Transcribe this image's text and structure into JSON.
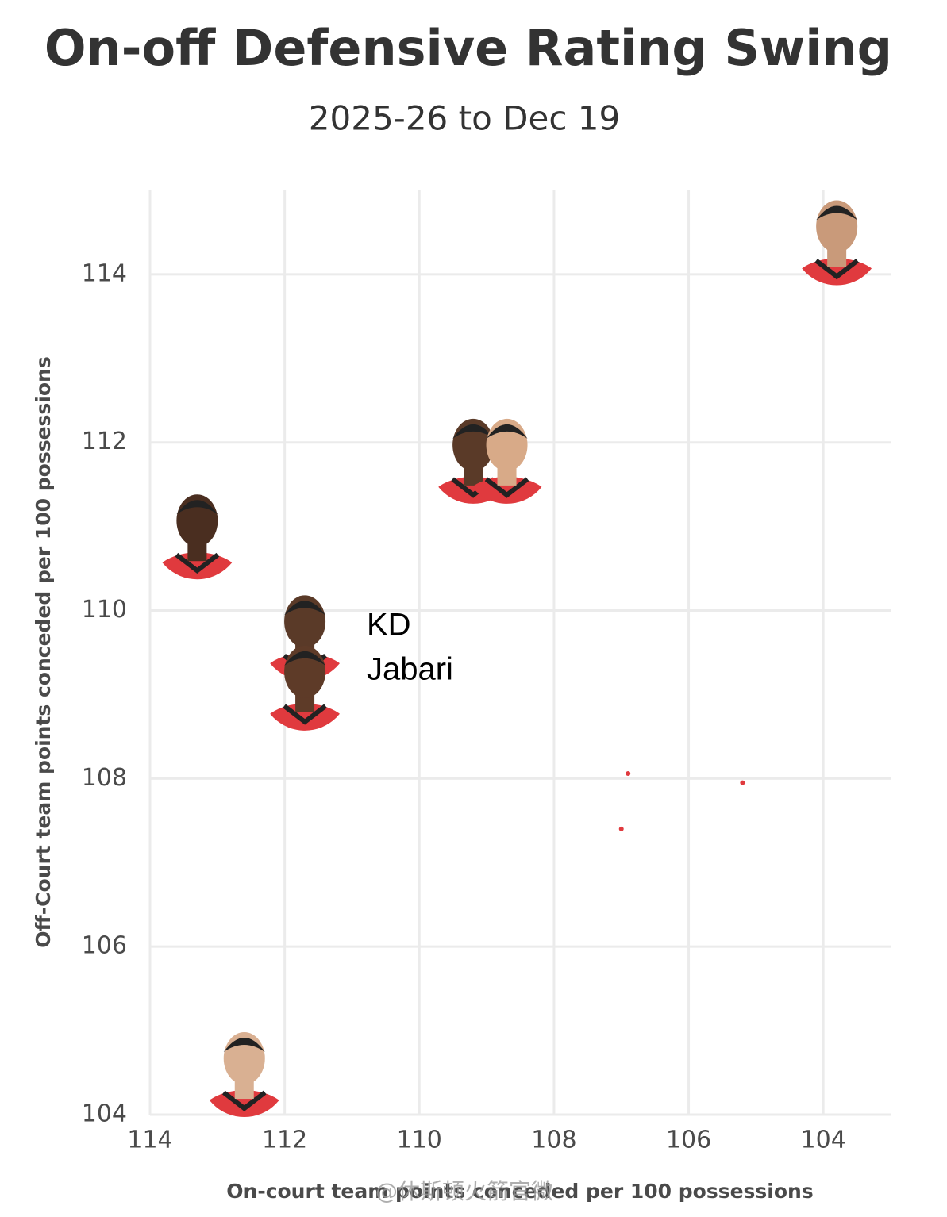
{
  "chart_data": {
    "type": "scatter",
    "title": "On-off Defensive Rating Swing",
    "subtitle": "2025-26 to Dec 19",
    "x_label": "On-court team points conceded per 100 possessions",
    "y_label": "Off-Court team points conceded per 100 possessions",
    "x": [
      103.8,
      109.2,
      108.7,
      113.3,
      111.7,
      111.7,
      112.6
    ],
    "values": [
      114.4,
      111.8,
      111.8,
      110.9,
      109.7,
      109.1,
      104.5
    ],
    "small_points": {
      "x": [
        106.9,
        107.0,
        105.2
      ],
      "values": [
        108.06,
        107.4,
        107.95
      ]
    },
    "annotations": [
      "KD",
      "Jabari"
    ],
    "watermark": "@休斯顿火箭官微",
    "xlim": [
      114,
      103
    ],
    "ylim": [
      104,
      115
    ],
    "xticks": [
      114,
      112,
      110,
      108,
      106,
      104
    ],
    "yticks": [
      104,
      106,
      108,
      110,
      112,
      114
    ],
    "grid": true,
    "color": "#e03a3e"
  }
}
